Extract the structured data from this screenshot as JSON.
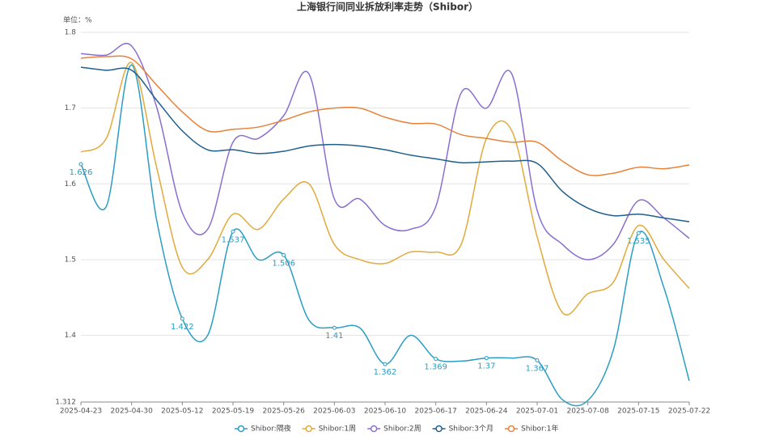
{
  "chart_data": {
    "type": "line",
    "title": "上海银行间同业拆放利率走势（Shibor）",
    "y_unit": "单位：%",
    "categories": [
      "2025-04-23",
      null,
      "2025-04-30",
      null,
      "2025-05-12",
      null,
      "2025-05-19",
      null,
      "2025-05-26",
      null,
      "2025-06-03",
      null,
      "2025-06-10",
      null,
      "2025-06-17",
      null,
      "2025-06-24",
      null,
      "2025-07-01",
      null,
      "2025-07-08",
      null,
      "2025-07-15",
      null,
      "2025-07-22"
    ],
    "ylim": [
      1.312,
      1.8
    ],
    "yticks": [
      1.312,
      1.4,
      1.5,
      1.6,
      1.7,
      1.8
    ],
    "grid": true,
    "legend": "bottom",
    "series": [
      {
        "name": "Shibor:隔夜",
        "color": "#2a9dc4",
        "values": [
          1.626,
          1.57,
          1.757,
          1.55,
          1.422,
          1.4,
          1.537,
          1.5,
          1.506,
          1.42,
          1.41,
          1.41,
          1.362,
          1.4,
          1.369,
          1.366,
          1.37,
          1.37,
          1.367,
          1.315,
          1.314,
          1.38,
          1.535,
          1.463,
          1.34
        ],
        "value_labels": [
          "1.626",
          null,
          null,
          null,
          "1.422",
          null,
          "1.537",
          null,
          "1.506",
          null,
          "1.41",
          null,
          "1.362",
          null,
          "1.369",
          null,
          "1.37",
          null,
          "1.367",
          null,
          null,
          null,
          "1.535",
          null,
          null
        ]
      },
      {
        "name": "Shibor:1周",
        "color": "#e2a93b",
        "values": [
          1.642,
          1.66,
          1.76,
          1.62,
          1.49,
          1.5,
          1.56,
          1.54,
          1.58,
          1.6,
          1.52,
          1.5,
          1.495,
          1.51,
          1.51,
          1.52,
          1.66,
          1.67,
          1.53,
          1.43,
          1.455,
          1.47,
          1.545,
          1.5,
          1.462
        ]
      },
      {
        "name": "Shibor:2周",
        "color": "#8b6fd0",
        "values": [
          1.772,
          1.77,
          1.782,
          1.7,
          1.562,
          1.54,
          1.655,
          1.66,
          1.69,
          1.745,
          1.58,
          1.58,
          1.545,
          1.54,
          1.57,
          1.72,
          1.7,
          1.745,
          1.565,
          1.52,
          1.5,
          1.52,
          1.578,
          1.555,
          1.528
        ]
      },
      {
        "name": "Shibor:3个月",
        "color": "#1f5f8b",
        "values": [
          1.754,
          1.75,
          1.75,
          1.71,
          1.67,
          1.645,
          1.645,
          1.64,
          1.643,
          1.65,
          1.652,
          1.65,
          1.645,
          1.638,
          1.633,
          1.628,
          1.629,
          1.63,
          1.627,
          1.59,
          1.568,
          1.558,
          1.56,
          1.555,
          1.55
        ]
      },
      {
        "name": "Shibor:1年",
        "color": "#e8823a",
        "values": [
          1.766,
          1.768,
          1.765,
          1.73,
          1.695,
          1.67,
          1.672,
          1.675,
          1.684,
          1.695,
          1.7,
          1.7,
          1.688,
          1.68,
          1.679,
          1.665,
          1.66,
          1.655,
          1.655,
          1.63,
          1.612,
          1.614,
          1.622,
          1.62,
          1.625
        ]
      }
    ]
  }
}
